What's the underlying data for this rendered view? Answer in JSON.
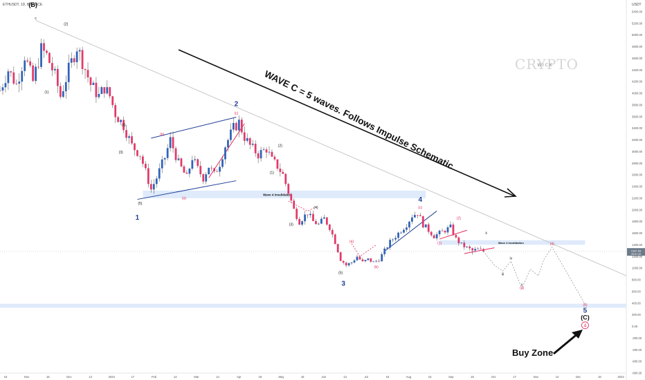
{
  "symbol_header": "ETHUSDT, 1D, BINANCE",
  "currency": "USDT",
  "price_badge": "1287.83",
  "price_badge_sub": "09:57:43",
  "watermark_main": "CRYPTO",
  "watermark_sub": "W I C K",
  "main_annotation": "WAVE C = 5 waves. Follows Impulse Schematic",
  "buy_zone_label": "Buy Zone",
  "zone_labels": {
    "wave4_invalidation_1": "Wave 4 Invalidation",
    "wave4_invalidation_2": "Wave 4 Invalidation"
  },
  "colors": {
    "bullish_candle": "#2f63b8",
    "bearish_candle": "#e23a6a",
    "wick": "#444444",
    "trendline_blue": "#1f3f95",
    "trendline_red": "#e0285a",
    "zone_fill": "#dbe9fb",
    "downtrend": "#bbbbbb",
    "projection": "#999999"
  },
  "chart_data": {
    "type": "candlestick",
    "symbol": "ETHUSDT",
    "interval": "1D",
    "exchange": "BINANCE",
    "ylim": [
      -800,
      5600
    ],
    "y_ticks": [
      "-800.00",
      "-600.00",
      "-400.00",
      "-200.00",
      "0.00",
      "200.00",
      "400.00",
      "600.00",
      "800.00",
      "1000.00",
      "1200.00",
      "1400.00",
      "1600.00",
      "1800.00",
      "2000.00",
      "2200.00",
      "2400.00",
      "2600.00",
      "2800.00",
      "3000.00",
      "3200.00",
      "3400.00",
      "3600.00",
      "3800.00",
      "4000.00",
      "4200.00",
      "4400.00",
      "4600.00",
      "4800.00",
      "5000.00",
      "5200.00",
      "5400.00"
    ],
    "x_ticks": [
      "18",
      "Nov",
      "15",
      "Dec",
      "13",
      "2022",
      "17",
      "Feb",
      "14",
      "Mar",
      "14",
      "Apr",
      "18",
      "May",
      "16",
      "Jun",
      "13",
      "Jul",
      "18",
      "Aug",
      "15",
      "Sep",
      "19",
      "Oct",
      "17",
      "Nov",
      "14",
      "Dec",
      "16",
      "2023"
    ],
    "price_path": [
      [
        0,
        4050
      ],
      [
        3,
        4400
      ],
      [
        6,
        4150
      ],
      [
        9,
        4650
      ],
      [
        12,
        4200
      ],
      [
        15,
        4750
      ],
      [
        17,
        4650
      ],
      [
        20,
        4300
      ],
      [
        22,
        3950
      ],
      [
        25,
        4400
      ],
      [
        28,
        4800
      ],
      [
        30,
        4550
      ],
      [
        33,
        4150
      ],
      [
        36,
        3950
      ],
      [
        38,
        4100
      ],
      [
        40,
        3950
      ],
      [
        42,
        3650
      ],
      [
        45,
        3450
      ],
      [
        48,
        3100
      ],
      [
        51,
        2950
      ],
      [
        53,
        2650
      ],
      [
        55,
        2350
      ],
      [
        57,
        2550
      ],
      [
        60,
        2900
      ],
      [
        62,
        3200
      ],
      [
        65,
        2800
      ],
      [
        68,
        2550
      ],
      [
        70,
        2900
      ],
      [
        72,
        2700
      ],
      [
        74,
        2550
      ],
      [
        76,
        2750
      ],
      [
        78,
        2600
      ],
      [
        80,
        2800
      ],
      [
        82,
        3100
      ],
      [
        85,
        3400
      ],
      [
        87,
        3500
      ],
      [
        89,
        3250
      ],
      [
        91,
        3100
      ],
      [
        94,
        2950
      ],
      [
        97,
        3050
      ],
      [
        99,
        2850
      ],
      [
        101,
        2750
      ],
      [
        103,
        2600
      ],
      [
        105,
        2300
      ],
      [
        107,
        2000
      ],
      [
        109,
        1800
      ],
      [
        112,
        1950
      ],
      [
        114,
        1800
      ],
      [
        116,
        1750
      ],
      [
        118,
        1850
      ],
      [
        120,
        1700
      ],
      [
        122,
        1450
      ],
      [
        124,
        1150
      ],
      [
        126,
        1050
      ],
      [
        128,
        1100
      ],
      [
        130,
        1200
      ],
      [
        132,
        1100
      ],
      [
        134,
        1150
      ],
      [
        136,
        1100
      ],
      [
        138,
        1150
      ],
      [
        140,
        1300
      ],
      [
        142,
        1450
      ],
      [
        144,
        1550
      ],
      [
        146,
        1650
      ],
      [
        148,
        1750
      ],
      [
        150,
        1900
      ],
      [
        152,
        1950
      ],
      [
        154,
        1750
      ],
      [
        156,
        1650
      ],
      [
        158,
        1550
      ],
      [
        160,
        1600
      ],
      [
        162,
        1650
      ],
      [
        164,
        1700
      ],
      [
        166,
        1500
      ],
      [
        168,
        1400
      ],
      [
        170,
        1350
      ],
      [
        172,
        1300
      ],
      [
        174,
        1320
      ],
      [
        176,
        1290
      ]
    ],
    "wave_labels": [
      {
        "label": "(B)",
        "x": 12,
        "y": 5480,
        "color": "#111111",
        "size": 9,
        "bold": true
      },
      {
        "label": "c",
        "x": 13,
        "y": 5270,
        "color": "#111111",
        "size": 5
      },
      {
        "label": "(2)",
        "x": 24,
        "y": 5170,
        "color": "#111111",
        "size": 5
      },
      {
        "label": "(1)",
        "x": 17,
        "y": 4000,
        "color": "#111111",
        "size": 5
      },
      {
        "label": "(3)",
        "x": 44,
        "y": 2970,
        "color": "#111111",
        "size": 5
      },
      {
        "label": "(4)",
        "x": 45,
        "y": 3440,
        "color": "#111111",
        "size": 5
      },
      {
        "label": "(5)",
        "x": 51,
        "y": 2090,
        "color": "#111111",
        "size": 5
      },
      {
        "label": "1",
        "x": 50,
        "y": 1830,
        "color": "#1f3f95",
        "size": 10,
        "bold": true
      },
      {
        "label": "(b)",
        "x": 59,
        "y": 3280,
        "color": "#e0285a",
        "size": 5
      },
      {
        "label": "(a)",
        "x": 67,
        "y": 2180,
        "color": "#e0285a",
        "size": 5
      },
      {
        "label": "2",
        "x": 86,
        "y": 3780,
        "color": "#1f3f95",
        "size": 10,
        "bold": true
      },
      {
        "label": "(c)",
        "x": 86,
        "y": 3640,
        "color": "#e0285a",
        "size": 5
      },
      {
        "label": "(2)",
        "x": 102,
        "y": 3080,
        "color": "#111111",
        "size": 5
      },
      {
        "label": "(1)",
        "x": 99,
        "y": 2620,
        "color": "#111111",
        "size": 5
      },
      {
        "label": "(4)",
        "x": 115,
        "y": 2020,
        "color": "#111111",
        "size": 5
      },
      {
        "label": "(3)",
        "x": 106,
        "y": 1730,
        "color": "#111111",
        "size": 5
      },
      {
        "label": "(a)",
        "x": 128,
        "y": 1440,
        "color": "#e0285a",
        "size": 5
      },
      {
        "label": "(5)",
        "x": 124,
        "y": 900,
        "color": "#111111",
        "size": 5
      },
      {
        "label": "3",
        "x": 125,
        "y": 700,
        "color": "#1f3f95",
        "size": 10,
        "bold": true
      },
      {
        "label": "(b)",
        "x": 137,
        "y": 1000,
        "color": "#e0285a",
        "size": 5
      },
      {
        "label": "4",
        "x": 153,
        "y": 2140,
        "color": "#1f3f95",
        "size": 10,
        "bold": true
      },
      {
        "label": "(c)",
        "x": 153,
        "y": 2020,
        "color": "#e0285a",
        "size": 5
      },
      {
        "label": "(1)",
        "x": 160,
        "y": 1410,
        "color": "#e0285a",
        "size": 5
      },
      {
        "label": "(2)",
        "x": 167,
        "y": 1840,
        "color": "#e0285a",
        "size": 5
      },
      {
        "label": "ii",
        "x": 177,
        "y": 1580,
        "color": "#111111",
        "size": 5
      },
      {
        "label": "(4)",
        "x": 201,
        "y": 1400,
        "color": "#e0285a",
        "size": 5
      },
      {
        "label": "i",
        "x": 172,
        "y": 1230,
        "color": "#111111",
        "size": 5
      },
      {
        "label": "iv",
        "x": 186,
        "y": 1150,
        "color": "#111111",
        "size": 5
      },
      {
        "label": "iii",
        "x": 183,
        "y": 880,
        "color": "#111111",
        "size": 5
      },
      {
        "label": "v",
        "x": 190,
        "y": 700,
        "color": "#111111",
        "size": 5
      },
      {
        "label": "(3)",
        "x": 190,
        "y": 640,
        "color": "#e0285a",
        "size": 5
      },
      {
        "label": "(5)",
        "x": 213,
        "y": 350,
        "color": "#e0285a",
        "size": 5
      },
      {
        "label": "5",
        "x": 213,
        "y": 240,
        "color": "#1f3f95",
        "size": 10,
        "bold": true
      },
      {
        "label": "(C)",
        "x": 213,
        "y": 120,
        "color": "#111111",
        "size": 9,
        "bold": true
      }
    ],
    "zones": [
      {
        "name": "wave4-invalidation-zone-1",
        "x1": 52,
        "x2": 155,
        "y_top": 2330,
        "y_bottom": 2200,
        "label_x": 101
      },
      {
        "name": "wave4-invalidation-zone-2",
        "x1": 160,
        "x2": 213,
        "y_top": 1480,
        "y_bottom": 1400,
        "label_x": 186
      },
      {
        "name": "buy-zone-band",
        "x1": 0,
        "x2": 228,
        "y_top": 390,
        "y_bottom": 320
      }
    ],
    "trendlines": [
      {
        "name": "downtrend-line",
        "x1": 13,
        "y1": 5250,
        "x2": 228,
        "y2": 870,
        "color": "#bbbbbb",
        "width": 0.8
      },
      {
        "name": "channel-upper-line",
        "x1": 55,
        "y1": 3230,
        "x2": 86,
        "y2": 3590,
        "color": "#1f3f95",
        "width": 1
      },
      {
        "name": "channel-lower-line",
        "x1": 50,
        "y1": 2180,
        "x2": 86,
        "y2": 2500,
        "color": "#1f3f95",
        "width": 1
      },
      {
        "name": "wave-c-line",
        "x1": 76,
        "y1": 2550,
        "x2": 89,
        "y2": 3480,
        "color": "#e0285a",
        "width": 1
      },
      {
        "name": "wave4-rising-line",
        "x1": 140,
        "y1": 1290,
        "x2": 159,
        "y2": 1980,
        "color": "#1f3f95",
        "width": 1
      },
      {
        "name": "triangle-upper-line",
        "x1": 160,
        "y1": 1500,
        "x2": 170,
        "y2": 1650,
        "color": "#e0285a",
        "width": 1
      },
      {
        "name": "triangle-lower-line",
        "x1": 169,
        "y1": 1250,
        "x2": 180,
        "y2": 1350,
        "color": "#e0285a",
        "width": 1
      }
    ],
    "projections": [
      {
        "name": "projection-path",
        "color": "#999999",
        "points": [
          [
            176,
            1290
          ],
          [
            180,
            1050
          ],
          [
            183,
            950
          ],
          [
            186,
            1120
          ],
          [
            190,
            650
          ],
          [
            193,
            980
          ],
          [
            196,
            870
          ],
          [
            198,
            1150
          ],
          [
            201,
            1360
          ],
          [
            213,
            380
          ]
        ]
      },
      {
        "name": "wave2-abc-dash",
        "color": "#e0285a",
        "points": [
          [
            128,
            1420
          ],
          [
            131,
            1200
          ],
          [
            137,
            1400
          ]
        ]
      },
      {
        "name": "wave4-ab-dash",
        "color": "#e0285a",
        "points": [
          [
            105,
            2150
          ],
          [
            112,
            1980
          ],
          [
            115,
            2050
          ]
        ]
      }
    ],
    "markers": [
      {
        "name": "wave4-circle-marker",
        "label": "4",
        "x": 213,
        "y": 20,
        "color": "#e0285a"
      }
    ]
  }
}
